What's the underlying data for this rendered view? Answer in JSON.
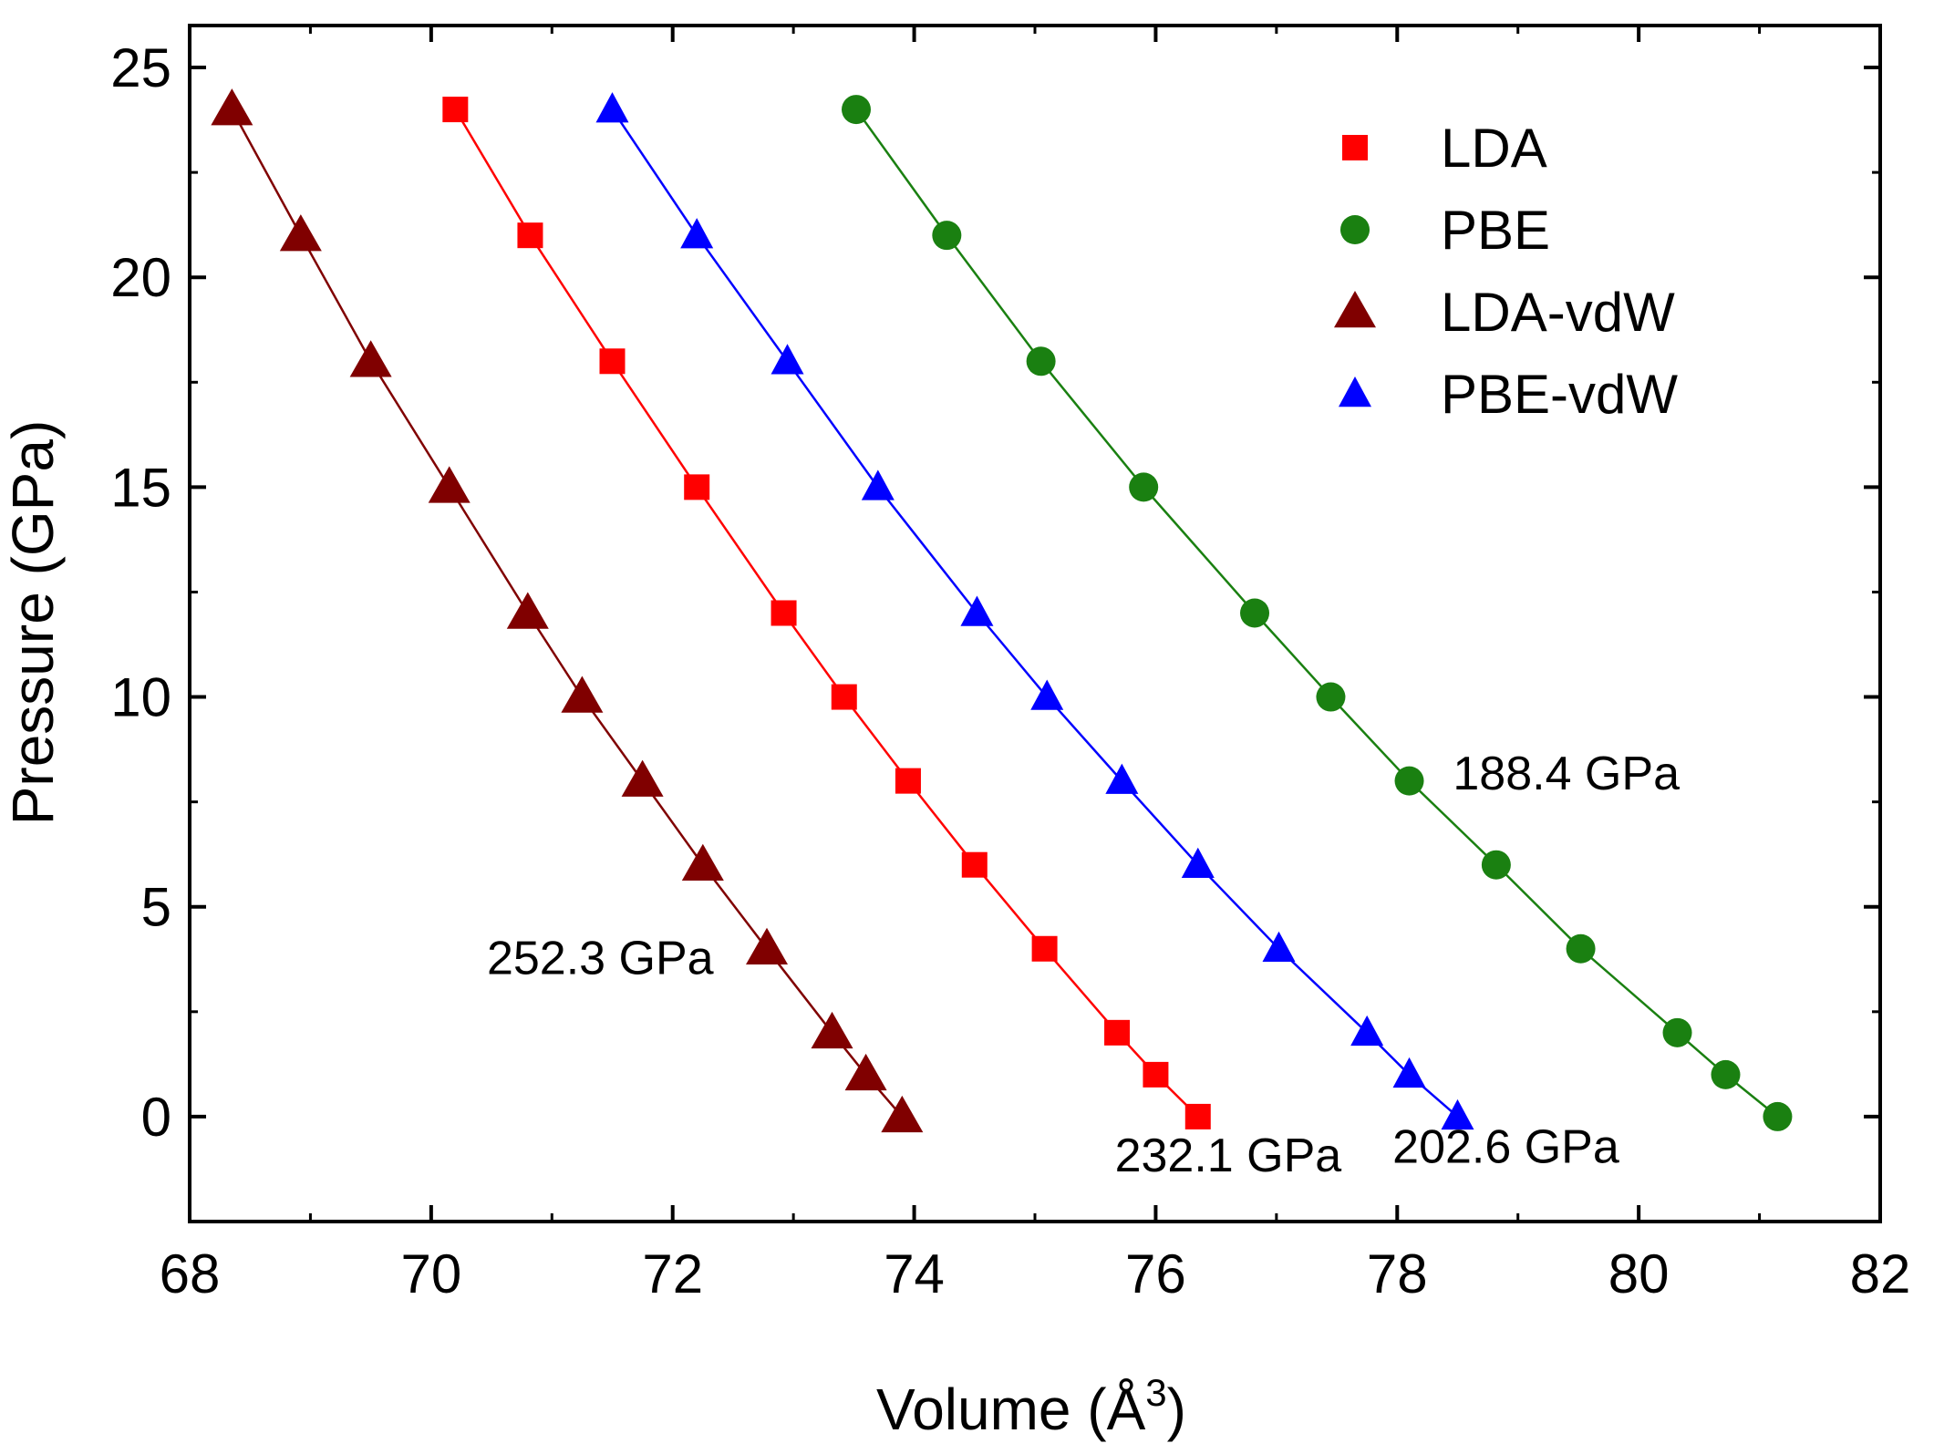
{
  "chart_data": {
    "type": "line",
    "title": "",
    "xlabel": "Volume (Å",
    "xlabel_sup": "3",
    "xlabel_close": ")",
    "ylabel": "Pressure (GPa)",
    "xlim": [
      68,
      82
    ],
    "ylim": [
      -2.5,
      26
    ],
    "xticks": [
      68,
      70,
      72,
      74,
      76,
      78,
      80,
      82
    ],
    "yticks": [
      0,
      5,
      10,
      15,
      20,
      25
    ],
    "legend_position": "top-right",
    "series": [
      {
        "name": "LDA",
        "color": "#ff0000",
        "marker": "square",
        "x": [
          76.35,
          76.0,
          75.68,
          75.08,
          74.5,
          73.95,
          73.42,
          72.92,
          72.2,
          71.5,
          70.82,
          70.2
        ],
        "y": [
          0,
          1,
          2,
          4,
          6,
          8,
          10,
          12,
          15,
          18,
          21,
          24
        ]
      },
      {
        "name": "PBE",
        "color": "#1a8011",
        "marker": "circle",
        "x": [
          81.15,
          80.72,
          80.32,
          79.52,
          78.82,
          78.1,
          77.45,
          76.82,
          75.9,
          75.05,
          74.27,
          73.52
        ],
        "y": [
          0,
          1,
          2,
          4,
          6,
          8,
          10,
          12,
          15,
          18,
          21,
          24
        ]
      },
      {
        "name": "LDA-vdW",
        "color": "#800000",
        "marker": "triangle",
        "x": [
          73.9,
          73.6,
          73.32,
          72.78,
          72.25,
          71.75,
          71.25,
          70.8,
          70.15,
          69.5,
          68.92,
          68.35
        ],
        "y": [
          0,
          1,
          2,
          4,
          6,
          8,
          10,
          12,
          15,
          18,
          21,
          24
        ]
      },
      {
        "name": "PBE-vdW",
        "color": "#0000ff",
        "marker": "triangle",
        "x": [
          78.5,
          78.1,
          77.75,
          77.02,
          76.35,
          75.72,
          75.1,
          74.52,
          73.7,
          72.95,
          72.2,
          71.5
        ],
        "y": [
          0,
          1,
          2,
          4,
          6,
          8,
          10,
          12,
          15,
          18,
          21,
          24
        ]
      }
    ],
    "annotations": [
      {
        "text": "252.3 GPa",
        "x": 71.4,
        "y": 3.4
      },
      {
        "text": "232.1 GPa",
        "x": 76.6,
        "y": -1.3
      },
      {
        "text": "202.6 GPa",
        "x": 78.9,
        "y": -1.1
      },
      {
        "text": "188.4 GPa",
        "x": 79.4,
        "y": 7.8
      }
    ]
  }
}
